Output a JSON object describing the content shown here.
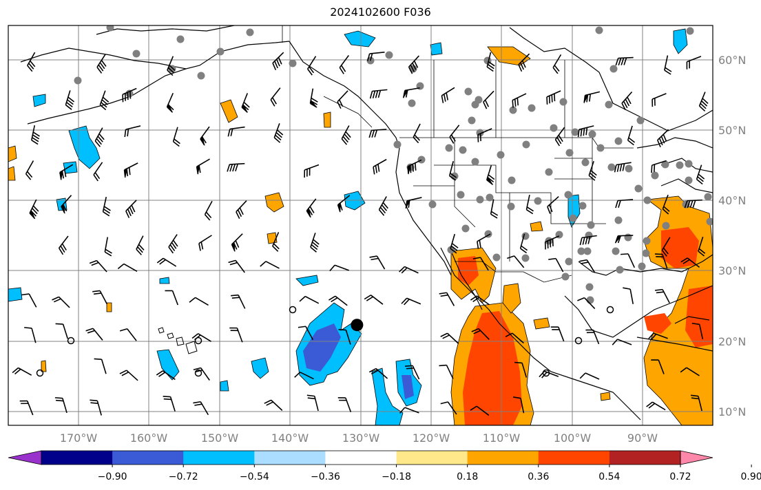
{
  "title": "2024102600 F036",
  "map": {
    "lon_labels": [
      "170°W",
      "160°W",
      "150°W",
      "140°W",
      "130°W",
      "120°W",
      "110°W",
      "100°W",
      "90°W"
    ],
    "lat_labels": [
      "60°N",
      "50°N",
      "40°N",
      "30°N",
      "20°N",
      "10°N"
    ],
    "extent": {
      "lon_min": -180,
      "lon_max": -80,
      "lat_min": 8,
      "lat_max": 65
    },
    "marker": {
      "lon": -130.5,
      "lat": 22.3
    },
    "colors": {
      "land_line": "#000000",
      "grid": "#808080",
      "station": "#808080",
      "barb": "#000000"
    }
  },
  "colorbar": {
    "labels": [
      "−0.90",
      "−0.72",
      "−0.54",
      "−0.36",
      "−0.18",
      "0.18",
      "0.36",
      "0.54",
      "0.72",
      "0.90"
    ],
    "colors": [
      "#9932cc",
      "#00008b",
      "#3b5bd6",
      "#00bfff",
      "#aaddff",
      "#ffffff",
      "#ffe88a",
      "#ffa500",
      "#ff4500",
      "#b22222",
      "#ff88aa"
    ]
  }
}
